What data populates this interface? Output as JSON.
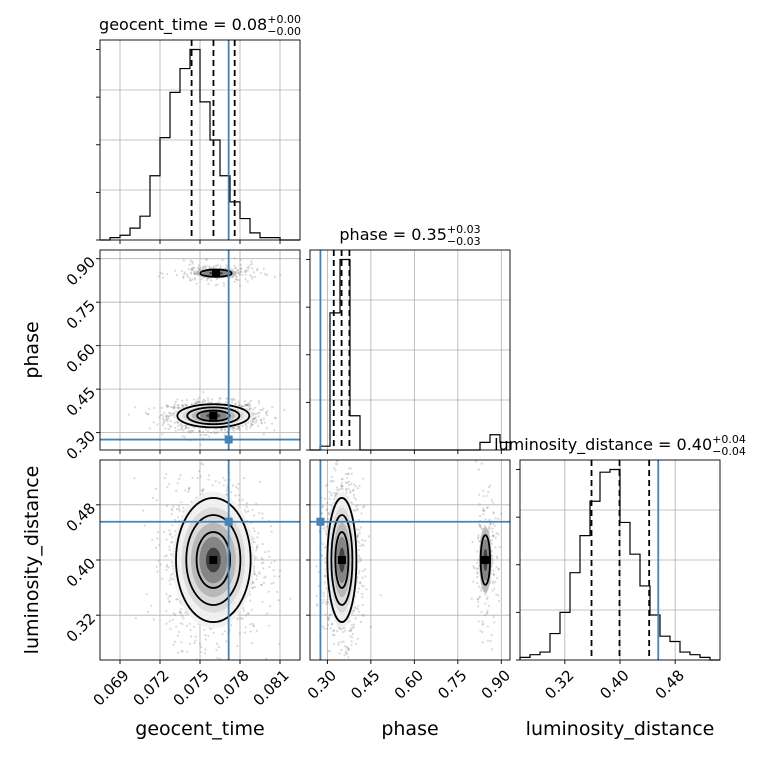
{
  "chart_data": {
    "type": "corner",
    "parameters": [
      {
        "key": "geocent_time",
        "axis_label": "geocent_time",
        "title_main": "geocent_time = 0.08",
        "title_sup": "+0.00",
        "title_sub": "−0.00",
        "range": [
          0.0675,
          0.0825
        ],
        "ticks": [
          0.069,
          0.072,
          0.075,
          0.078,
          0.081
        ],
        "tick_labels": [
          "0.069",
          "0.072",
          "0.075",
          "0.078",
          "0.081"
        ],
        "truth": 0.07715,
        "quantiles": [
          0.07437,
          0.07601,
          0.0776
        ],
        "hist_start": 0.0675,
        "hist_step": 0.00075,
        "hist_counts": [
          0,
          1,
          2,
          5,
          10,
          27,
          43,
          62,
          72,
          80,
          58,
          42,
          27,
          16,
          9,
          3,
          1,
          1,
          0,
          0
        ]
      },
      {
        "key": "phase",
        "axis_label": "phase",
        "title_main": "phase = 0.35",
        "title_sup": "+0.03",
        "title_sub": "−0.03",
        "range": [
          0.24,
          0.93
        ],
        "ticks": [
          0.3,
          0.45,
          0.6,
          0.75,
          0.9
        ],
        "tick_labels": [
          "0.30",
          "0.45",
          "0.60",
          "0.75",
          "0.90"
        ],
        "truth": 0.276,
        "quantiles": [
          0.322,
          0.349,
          0.376
        ],
        "hist_start": 0.24,
        "hist_step": 0.0345,
        "hist_counts": [
          0,
          2,
          72,
          100,
          18,
          0,
          0,
          0,
          0,
          0,
          0,
          0,
          0,
          0,
          0,
          0,
          0,
          4,
          8,
          4
        ]
      },
      {
        "key": "luminosity_distance",
        "axis_label": "luminosity_distance",
        "title_main": "luminosity_distance = 0.40",
        "title_sup": "+0.04",
        "title_sub": "−0.04",
        "range": [
          0.255,
          0.545
        ],
        "ticks": [
          0.32,
          0.4,
          0.48
        ],
        "tick_labels": [
          "0.32",
          "0.40",
          "0.48"
        ],
        "truth": 0.4555,
        "quantiles": [
          0.3587,
          0.3993,
          0.4423
        ],
        "hist_start": 0.255,
        "hist_step": 0.0145,
        "hist_counts": [
          1,
          2,
          3,
          10,
          18,
          33,
          47,
          60,
          71,
          72,
          52,
          40,
          28,
          17,
          9,
          7,
          3,
          2,
          1,
          0
        ]
      }
    ],
    "pairs": [
      {
        "x": "geocent_time",
        "y": "phase",
        "modes": [
          {
            "cx": 0.076,
            "cy": 0.358,
            "sx": 0.00135,
            "sy": 0.02,
            "weight": 0.85
          },
          {
            "cx": 0.0762,
            "cy": 0.85,
            "sx": 0.0013,
            "sy": 0.014,
            "weight": 0.15
          }
        ]
      },
      {
        "x": "geocent_time",
        "y": "luminosity_distance",
        "modes": [
          {
            "cx": 0.076,
            "cy": 0.4,
            "sx": 0.0014,
            "sy": 0.045,
            "weight": 1.0
          }
        ]
      },
      {
        "x": "phase",
        "y": "luminosity_distance",
        "modes": [
          {
            "cx": 0.35,
            "cy": 0.4,
            "sx": 0.025,
            "sy": 0.045,
            "weight": 0.85
          },
          {
            "cx": 0.845,
            "cy": 0.4,
            "sx": 0.018,
            "sy": 0.04,
            "weight": 0.15
          }
        ]
      }
    ],
    "truth_color": "#4682b4",
    "quantile_color": "#000000",
    "grid": true
  }
}
